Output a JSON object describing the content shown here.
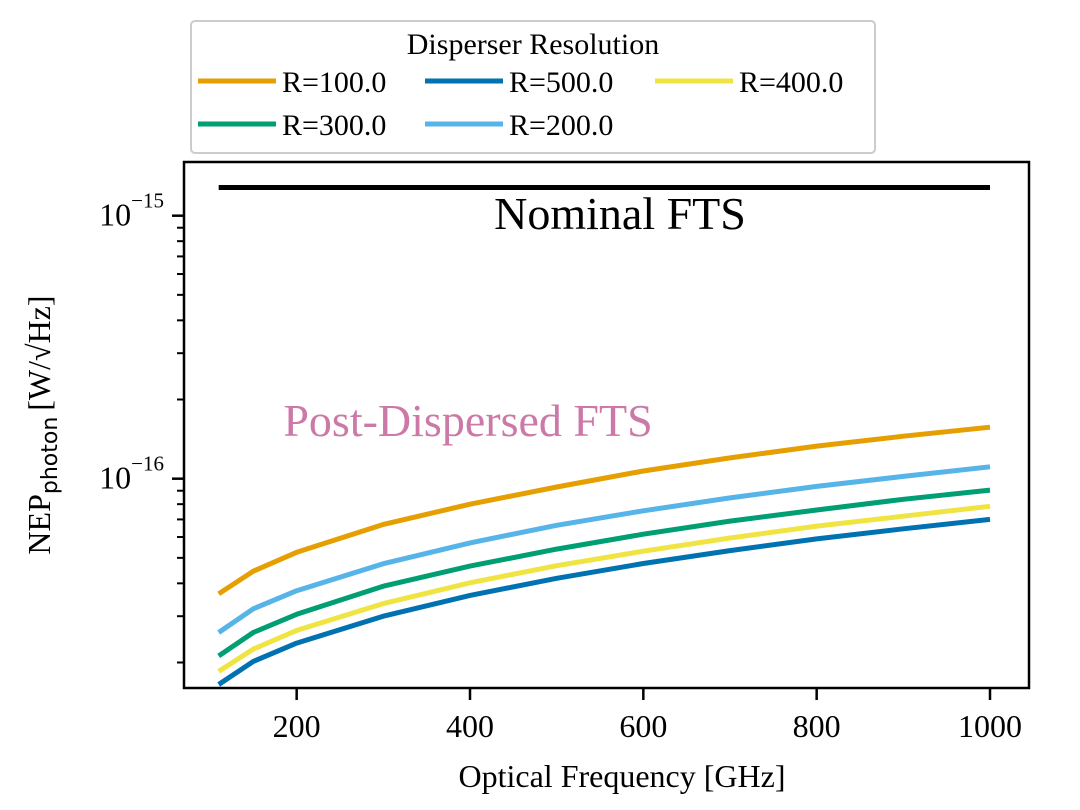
{
  "chart_data": {
    "type": "line",
    "xlabel": "Optical Frequency [GHz]",
    "ylabel": "NEP",
    "ylabel_sub": "photon",
    "ylabel_unit": "[W/√Hz]",
    "yscale": "log",
    "xlim": [
      70,
      1045
    ],
    "ylim": [
      1.6e-17,
      1.6e-15
    ],
    "x_ticks": [
      200,
      400,
      600,
      800,
      1000
    ],
    "x_tick_labels": [
      "200",
      "400",
      "600",
      "800",
      "1000"
    ],
    "y_major_ticks": [
      1e-16,
      1e-15
    ],
    "y_tick_labels": [
      {
        "base": "10",
        "exp": "−16"
      },
      {
        "base": "10",
        "exp": "−15"
      }
    ],
    "grid": false,
    "legend": {
      "title": "Disperser Resolution",
      "placement": "top-center",
      "entries": [
        "R=100.0",
        "R=300.0",
        "R=500.0",
        "R=200.0",
        "R=400.0"
      ]
    },
    "annotations": {
      "nominal": {
        "text": "Nominal FTS",
        "color": "#000000"
      },
      "post": {
        "text": "Post-Dispersed FTS",
        "color": "#cc79a7"
      }
    },
    "nominal_line": {
      "x": [
        110,
        1000
      ],
      "y": 1.28e-15,
      "color": "#000000"
    },
    "x": [
      110,
      150,
      200,
      300,
      400,
      500,
      600,
      700,
      800,
      900,
      1000
    ],
    "series": [
      {
        "name": "R=100.0",
        "color": "#e69f00",
        "values": [
          3.65e-17,
          4.45e-17,
          5.25e-17,
          6.7e-17,
          8e-17,
          9.3e-17,
          1.07e-16,
          1.2e-16,
          1.33e-16,
          1.45e-16,
          1.57e-16
        ]
      },
      {
        "name": "R=200.0",
        "color": "#56b4e9",
        "values": [
          2.6e-17,
          3.2e-17,
          3.75e-17,
          4.75e-17,
          5.7e-17,
          6.65e-17,
          7.55e-17,
          8.45e-17,
          9.35e-17,
          1.02e-16,
          1.11e-16
        ]
      },
      {
        "name": "R=300.0",
        "color": "#009e73",
        "values": [
          2.12e-17,
          2.6e-17,
          3.05e-17,
          3.9e-17,
          4.65e-17,
          5.4e-17,
          6.15e-17,
          6.9e-17,
          7.6e-17,
          8.35e-17,
          9.05e-17
        ]
      },
      {
        "name": "R=400.0",
        "color": "#f0e442",
        "values": [
          1.85e-17,
          2.25e-17,
          2.65e-17,
          3.35e-17,
          4.02e-17,
          4.67e-17,
          5.3e-17,
          5.95e-17,
          6.6e-17,
          7.2e-17,
          7.85e-17
        ]
      },
      {
        "name": "R=500.0",
        "color": "#0072b2",
        "values": [
          1.65e-17,
          2.02e-17,
          2.37e-17,
          3e-17,
          3.6e-17,
          4.18e-17,
          4.76e-17,
          5.33e-17,
          5.9e-17,
          6.45e-17,
          7e-17
        ]
      }
    ]
  }
}
